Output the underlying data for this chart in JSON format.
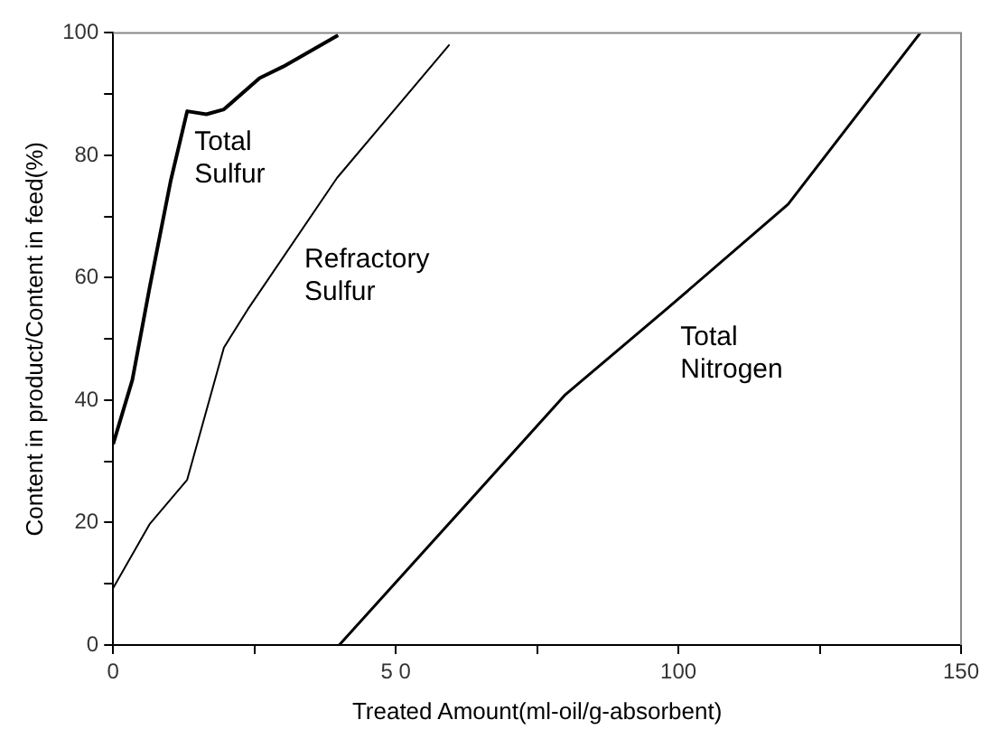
{
  "chart_data": {
    "type": "line",
    "xlabel": "Treated Amount(ml-oil/g-absorbent)",
    "ylabel": "Content in product/Content in feed(%)",
    "xlim": [
      0,
      150
    ],
    "xticks": [
      0,
      {
        "value": 25,
        "label": null
      },
      {
        "value": 50,
        "label": "5 0"
      },
      {
        "value": 75,
        "label": null
      },
      100,
      {
        "value": 125,
        "label": null
      },
      150
    ],
    "ylim": [
      0,
      100
    ],
    "yticks": [
      0,
      {
        "value": 10,
        "label": null
      },
      20,
      {
        "value": 30,
        "label": null
      },
      40,
      {
        "value": 50,
        "label": null
      },
      60,
      {
        "value": 70,
        "label": null
      },
      80,
      {
        "value": 90,
        "label": null
      },
      100
    ],
    "grid": false,
    "legend": false,
    "marker": "none",
    "line_style": "solid",
    "series": [
      {
        "name": "Total\nSulfur",
        "color": "#000000",
        "x": [
          0,
          3.4,
          6.5,
          10.2,
          13.1,
          16.5,
          19.6,
          25.9,
          30.1,
          39.8
        ],
        "values": [
          32.8,
          43.3,
          58.6,
          75.9,
          87.2,
          86.7,
          87.5,
          92.6,
          94.5,
          99.6
        ]
      },
      {
        "name": "Refractory\nSulfur",
        "color": "#000000",
        "x": [
          0,
          6.5,
          13.1,
          19.6,
          23.8,
          39.6,
          59.5
        ],
        "values": [
          9.3,
          19.8,
          27,
          48.6,
          54.8,
          76.3,
          98.1
        ]
      },
      {
        "name": "Total\nNitrogen",
        "color": "#000000",
        "x": [
          40,
          80,
          97.8,
          119.4,
          142.8
        ],
        "values": [
          0,
          40.9,
          54.8,
          72,
          100
        ]
      }
    ]
  }
}
